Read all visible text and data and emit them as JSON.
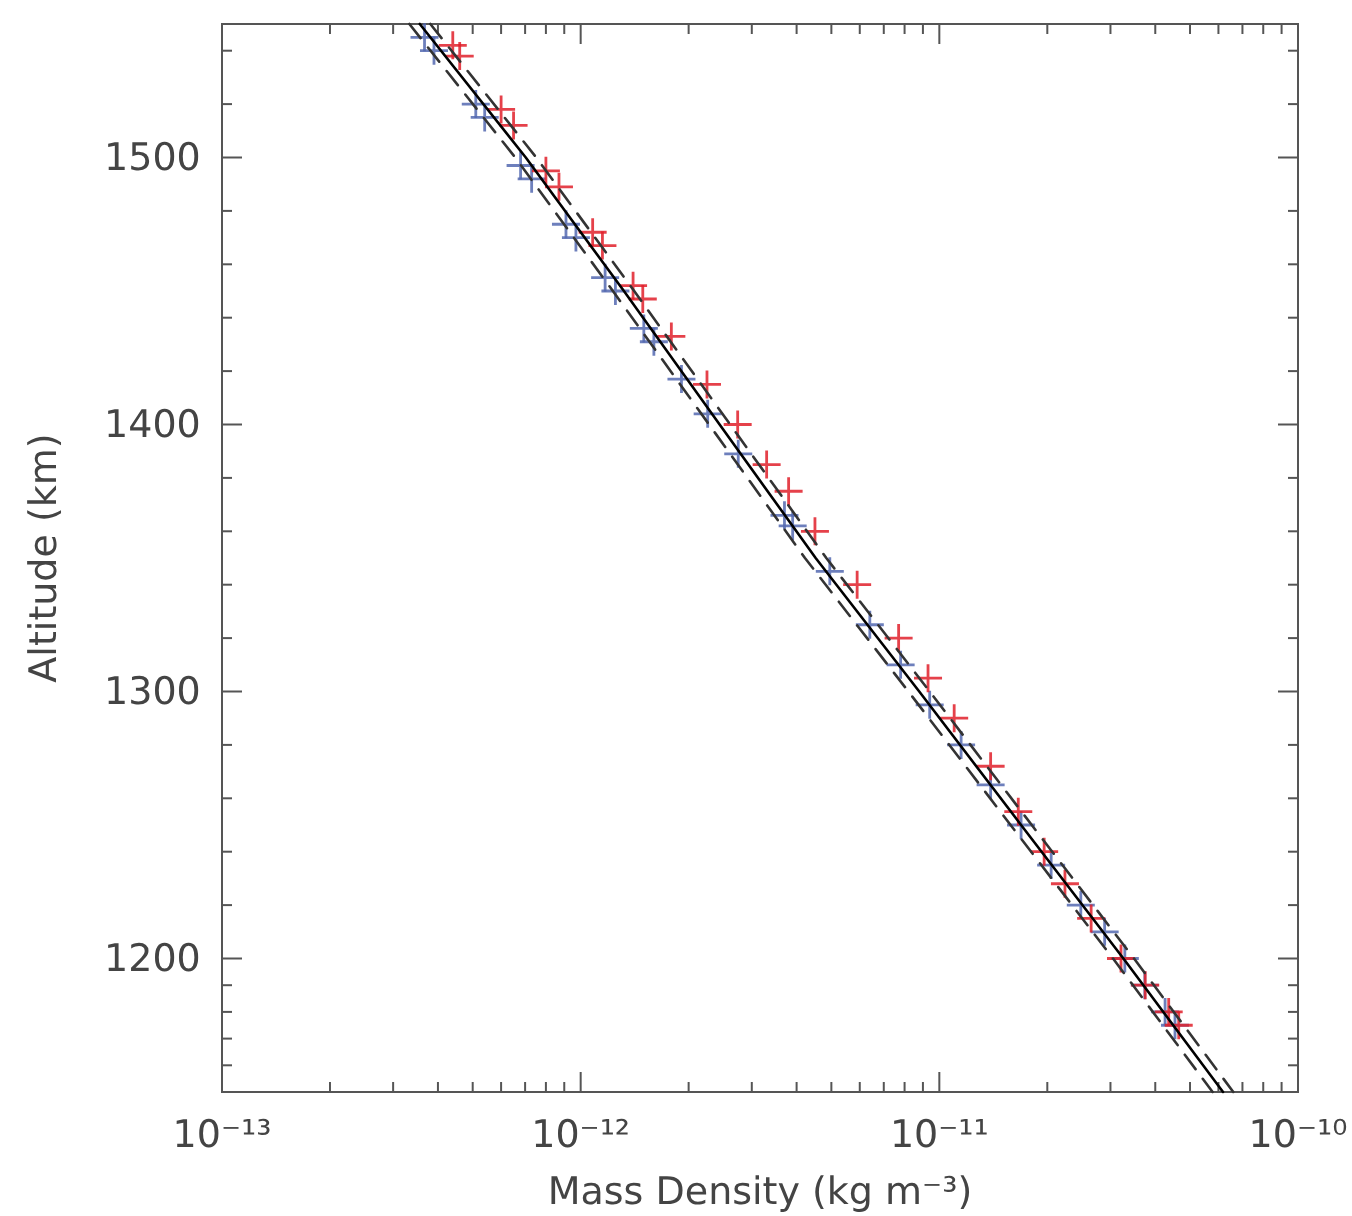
{
  "chart_data": {
    "type": "scatter",
    "xlabel": "Mass Density (kg m⁻³)",
    "ylabel": "Altitude (km)",
    "log": "x",
    "marker": "cross",
    "grid": false,
    "xlim": [
      1e-13,
      1e-10
    ],
    "ylim": [
      1150,
      1550
    ],
    "xticks": [
      {
        "value": 1e-13,
        "label": "10⁻¹³"
      },
      {
        "value": 2e-13,
        "label": null
      },
      {
        "value": 3e-13,
        "label": null
      },
      {
        "value": 4e-13,
        "label": null
      },
      {
        "value": 5e-13,
        "label": null
      },
      {
        "value": 6e-13,
        "label": null
      },
      {
        "value": 7e-13,
        "label": null
      },
      {
        "value": 8e-13,
        "label": null
      },
      {
        "value": 9e-13,
        "label": null
      },
      {
        "value": 1e-12,
        "label": "10⁻¹²"
      },
      {
        "value": 2e-12,
        "label": null
      },
      {
        "value": 3e-12,
        "label": null
      },
      {
        "value": 4e-12,
        "label": null
      },
      {
        "value": 5e-12,
        "label": null
      },
      {
        "value": 6e-12,
        "label": null
      },
      {
        "value": 7e-12,
        "label": null
      },
      {
        "value": 8e-12,
        "label": null
      },
      {
        "value": 9e-12,
        "label": null
      },
      {
        "value": 1e-11,
        "label": "10⁻¹¹"
      },
      {
        "value": 2e-11,
        "label": null
      },
      {
        "value": 3e-11,
        "label": null
      },
      {
        "value": 4e-11,
        "label": null
      },
      {
        "value": 5e-11,
        "label": null
      },
      {
        "value": 6e-11,
        "label": null
      },
      {
        "value": 7e-11,
        "label": null
      },
      {
        "value": 8e-11,
        "label": null
      },
      {
        "value": 9e-11,
        "label": null
      },
      {
        "value": 1e-10,
        "label": "10⁻¹⁰"
      }
    ],
    "yticks": [
      {
        "value": 1160,
        "label": null
      },
      {
        "value": 1170,
        "label": null
      },
      {
        "value": 1180,
        "label": null
      },
      {
        "value": 1190,
        "label": null
      },
      1200,
      {
        "value": 1220,
        "label": null
      },
      {
        "value": 1240,
        "label": null
      },
      {
        "value": 1260,
        "label": null
      },
      {
        "value": 1280,
        "label": null
      },
      1300,
      {
        "value": 1320,
        "label": null
      },
      {
        "value": 1340,
        "label": null
      },
      {
        "value": 1360,
        "label": null
      },
      {
        "value": 1380,
        "label": null
      },
      1400,
      {
        "value": 1420,
        "label": null
      },
      {
        "value": 1440,
        "label": null
      },
      {
        "value": 1460,
        "label": null
      },
      {
        "value": 1480,
        "label": null
      },
      1500,
      {
        "value": 1520,
        "label": null
      },
      {
        "value": 1540,
        "label": null
      }
    ],
    "series": [
      {
        "color": "#5468b0",
        "x": [
          3.67e-13,
          3.9e-13,
          5.1e-13,
          5.4e-13,
          6.8e-13,
          7.3e-13,
          9.1e-13,
          9.7e-13,
          1.17e-12,
          1.25e-12,
          1.5e-12,
          1.6e-12,
          1.91e-12,
          2.26e-12,
          2.75e-12,
          3.7e-12,
          3.9e-12,
          4.95e-12,
          6.4e-12,
          7.8e-12,
          9.4e-12,
          1.15e-11,
          1.39e-11,
          1.69e-11,
          2.05e-11,
          2.48e-11,
          2.89e-11,
          3.29e-11,
          3.74e-11,
          4.26e-11,
          4.54e-11
        ],
        "values": [
          1545,
          1540,
          1520,
          1515,
          1497,
          1492,
          1475,
          1470,
          1455,
          1450,
          1436,
          1431,
          1417,
          1404,
          1389,
          1366,
          1362,
          1345,
          1325,
          1310,
          1295,
          1280,
          1265,
          1250,
          1235,
          1220,
          1210,
          1200,
          1190,
          1180,
          1175
        ]
      },
      {
        "color": "#e0202a",
        "x": [
          4.4e-13,
          4.6e-13,
          6e-13,
          6.5e-13,
          8e-13,
          8.7e-13,
          1.08e-12,
          1.15e-12,
          1.4e-12,
          1.49e-12,
          1.79e-12,
          2.25e-12,
          2.74e-12,
          3.3e-12,
          3.8e-12,
          4.5e-12,
          5.9e-12,
          7.7e-12,
          9.3e-12,
          1.1e-11,
          1.39e-11,
          1.66e-11,
          1.96e-11,
          2.24e-11,
          2.65e-11,
          3.21e-11,
          3.75e-11,
          4.36e-11,
          4.65e-11
        ],
        "values": [
          1542,
          1538,
          1518,
          1512,
          1495,
          1489,
          1472,
          1467,
          1452,
          1447,
          1433,
          1415,
          1400,
          1385,
          1375,
          1360,
          1340,
          1320,
          1305,
          1290,
          1272,
          1255,
          1240,
          1228,
          1215,
          1200,
          1190,
          1180,
          1175
        ]
      },
      {
        "type": "line",
        "marker": "none",
        "color": "#000000",
        "line_style": "solid",
        "x": [
          3.56e-13,
          7.03e-13,
          1.32e-12,
          2.44e-12,
          4.52e-12,
          8.79e-12,
          1.69e-11,
          3.26e-11,
          6.18e-11
        ],
        "values": [
          1550,
          1500,
          1450,
          1400,
          1350,
          1300,
          1250,
          1200,
          1150
        ]
      },
      {
        "type": "line",
        "marker": "none",
        "color": "#333333",
        "line_style": "dashed",
        "x": [
          3.81e-13,
          7.52e-13,
          1.41e-12,
          2.61e-12,
          4.84e-12,
          9.4e-12,
          1.81e-11,
          3.49e-11,
          6.6e-11
        ],
        "values": [
          1550,
          1500,
          1450,
          1400,
          1350,
          1300,
          1250,
          1200,
          1150
        ]
      },
      {
        "type": "line",
        "marker": "none",
        "color": "#333333",
        "line_style": "dashed",
        "x": [
          3.33e-13,
          6.57e-13,
          1.23e-12,
          2.28e-12,
          4.22e-12,
          8.2e-12,
          1.58e-11,
          3.05e-11,
          5.78e-11
        ],
        "values": [
          1550,
          1500,
          1450,
          1400,
          1350,
          1300,
          1250,
          1200,
          1150
        ]
      }
    ]
  }
}
